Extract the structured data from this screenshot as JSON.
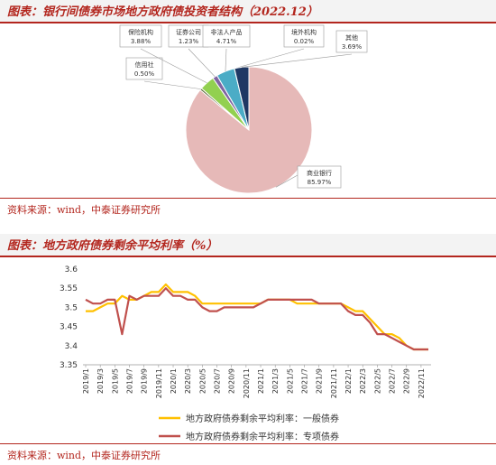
{
  "section1": {
    "title": "图表：银行间债券市场地方政府债投资者结构（2022.12）",
    "source": "资料来源：wind，中泰证券研究所"
  },
  "section2": {
    "title": "图表：地方政府债券剩余平均利率（%）",
    "source": "资料来源：wind，中泰证券研究所"
  },
  "chart_data": [
    {
      "type": "pie",
      "title": "",
      "slices": [
        {
          "label": "商业银行",
          "value": 85.97,
          "display": "85.97%",
          "color": "#e6b9b8"
        },
        {
          "label": "信用社",
          "value": 0.5,
          "display": "0.50%",
          "color": "#4f6228"
        },
        {
          "label": "保险机构",
          "value": 3.88,
          "display": "3.88%",
          "color": "#92d050"
        },
        {
          "label": "证券公司",
          "value": 1.23,
          "display": "1.23%",
          "color": "#8064a2"
        },
        {
          "label": "非法人产品",
          "value": 4.71,
          "display": "4.71%",
          "color": "#4bacc6"
        },
        {
          "label": "境外机构",
          "value": 0.02,
          "display": "0.02%",
          "color": "#4f81bd"
        },
        {
          "label": "其他",
          "value": 3.69,
          "display": "3.69%",
          "color": "#1f3864"
        }
      ]
    },
    {
      "type": "line",
      "title": "",
      "xlabel": "",
      "ylabel": "",
      "ylim": [
        3.35,
        3.6
      ],
      "yticks": [
        "3.35",
        "3.4",
        "3.45",
        "3.5",
        "3.55",
        "3.6"
      ],
      "x": [
        "2019/1",
        "2019/2",
        "2019/3",
        "2019/4",
        "2019/5",
        "2019/6",
        "2019/7",
        "2019/8",
        "2019/9",
        "2019/10",
        "2019/11",
        "2019/12",
        "2020/1",
        "2020/2",
        "2020/3",
        "2020/4",
        "2020/5",
        "2020/6",
        "2020/7",
        "2020/8",
        "2020/9",
        "2020/10",
        "2020/11",
        "2020/12",
        "2021/1",
        "2021/2",
        "2021/3",
        "2021/4",
        "2021/5",
        "2021/6",
        "2021/7",
        "2021/8",
        "2021/9",
        "2021/10",
        "2021/11",
        "2021/12",
        "2022/1",
        "2022/2",
        "2022/3",
        "2022/4",
        "2022/5",
        "2022/6",
        "2022/7",
        "2022/8",
        "2022/9",
        "2022/10",
        "2022/11",
        "2022/12"
      ],
      "xtick_labels": [
        "2019/1",
        "2019/3",
        "2019/5",
        "2019/7",
        "2019/9",
        "2019/11",
        "2020/1",
        "2020/3",
        "2020/5",
        "2020/7",
        "2020/9",
        "2020/11",
        "2021/1",
        "2021/3",
        "2021/5",
        "2021/7",
        "2021/9",
        "2021/11",
        "2022/1",
        "2022/3",
        "2022/5",
        "2022/7",
        "2022/9",
        "2022/11"
      ],
      "series": [
        {
          "name": "地方政府债券剩余平均利率：一般债券",
          "color": "#ffc000",
          "values": [
            3.49,
            3.49,
            3.5,
            3.51,
            3.51,
            3.53,
            3.52,
            3.52,
            3.53,
            3.54,
            3.54,
            3.56,
            3.54,
            3.54,
            3.54,
            3.53,
            3.51,
            3.51,
            3.51,
            3.51,
            3.51,
            3.51,
            3.51,
            3.51,
            3.51,
            3.52,
            3.52,
            3.52,
            3.52,
            3.51,
            3.51,
            3.51,
            3.51,
            3.51,
            3.51,
            3.51,
            3.5,
            3.49,
            3.49,
            3.47,
            3.45,
            3.43,
            3.43,
            3.42,
            3.4,
            3.39,
            3.39,
            3.39
          ]
        },
        {
          "name": "地方政府债券剩余平均利率：专项债券",
          "color": "#c0504d",
          "values": [
            3.52,
            3.51,
            3.51,
            3.52,
            3.52,
            3.43,
            3.53,
            3.52,
            3.53,
            3.53,
            3.53,
            3.55,
            3.53,
            3.53,
            3.52,
            3.52,
            3.5,
            3.49,
            3.49,
            3.5,
            3.5,
            3.5,
            3.5,
            3.5,
            3.51,
            3.52,
            3.52,
            3.52,
            3.52,
            3.52,
            3.52,
            3.52,
            3.51,
            3.51,
            3.51,
            3.51,
            3.49,
            3.48,
            3.48,
            3.46,
            3.43,
            3.43,
            3.42,
            3.41,
            3.4,
            3.39,
            3.39,
            3.39
          ]
        }
      ]
    }
  ]
}
